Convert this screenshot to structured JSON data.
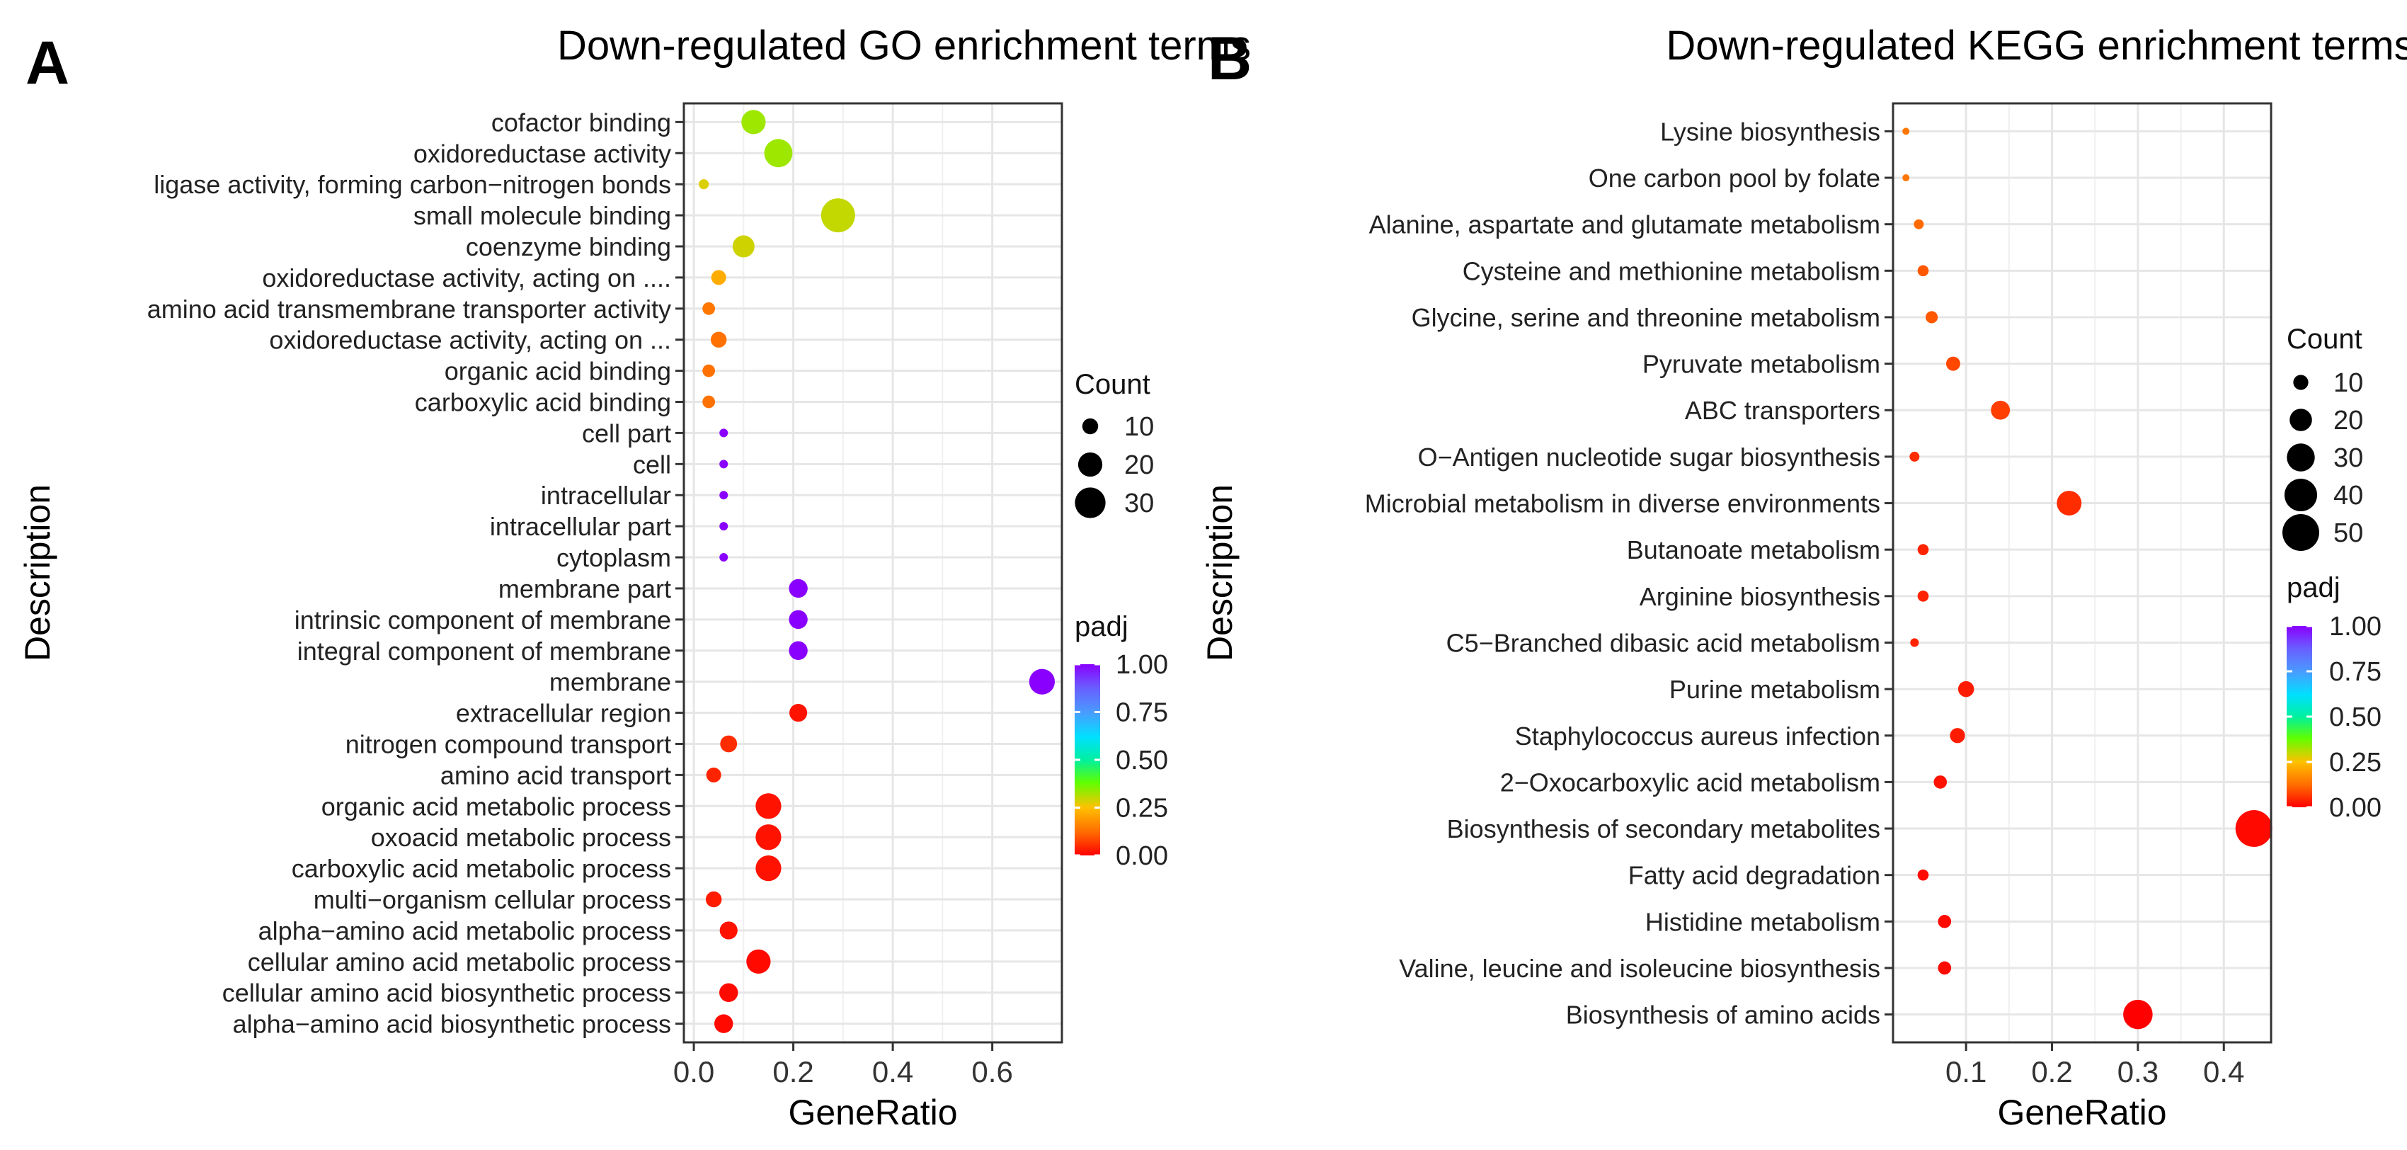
{
  "chart_data": [
    {
      "panel": "A",
      "type": "scatter",
      "title": "Down-regulated GO enrichment terms",
      "xlabel": "GeneRatio",
      "ylabel": "Description",
      "xlim": [
        -0.02,
        0.74
      ],
      "xticks": [
        0.0,
        0.2,
        0.4,
        0.6
      ],
      "xtick_labels": [
        "0.0",
        "0.2",
        "0.4",
        "0.6"
      ],
      "grid": true,
      "size_legend": {
        "title": "Count",
        "values": [
          10,
          20,
          30
        ],
        "labels": [
          "10",
          "20",
          "30"
        ]
      },
      "color_legend": {
        "title": "padj",
        "ticks": [
          1.0,
          0.75,
          0.5,
          0.25,
          0.0
        ],
        "labels": [
          "1.00",
          "0.75",
          "0.50",
          "0.25",
          "0.00"
        ]
      },
      "points": [
        {
          "label": "cofactor binding",
          "x": 0.12,
          "count": 20,
          "padj": 0.33
        },
        {
          "label": "oxidoreductase activity",
          "x": 0.17,
          "count": 26,
          "padj": 0.33
        },
        {
          "label": "ligase activity, forming carbon−nitrogen bonds",
          "x": 0.02,
          "count": 5,
          "padj": 0.28
        },
        {
          "label": "small molecule binding",
          "x": 0.29,
          "count": 36,
          "padj": 0.3
        },
        {
          "label": "coenzyme binding",
          "x": 0.1,
          "count": 17,
          "padj": 0.29
        },
        {
          "label": "oxidoreductase activity, acting on ....",
          "x": 0.05,
          "count": 9,
          "padj": 0.22
        },
        {
          "label": "amino acid transmembrane transporter activity",
          "x": 0.03,
          "count": 7,
          "padj": 0.14
        },
        {
          "label": "oxidoreductase activity, acting on ...",
          "x": 0.05,
          "count": 10,
          "padj": 0.13
        },
        {
          "label": "organic acid binding",
          "x": 0.03,
          "count": 7,
          "padj": 0.13
        },
        {
          "label": "carboxylic acid binding",
          "x": 0.03,
          "count": 7,
          "padj": 0.13
        },
        {
          "label": "cell part",
          "x": 0.06,
          "count": 4,
          "padj": 1.0
        },
        {
          "label": "cell",
          "x": 0.06,
          "count": 4,
          "padj": 1.0
        },
        {
          "label": "intracellular",
          "x": 0.06,
          "count": 4,
          "padj": 1.0
        },
        {
          "label": "intracellular part",
          "x": 0.06,
          "count": 4,
          "padj": 1.0
        },
        {
          "label": "cytoplasm",
          "x": 0.06,
          "count": 4,
          "padj": 1.0
        },
        {
          "label": "membrane part",
          "x": 0.21,
          "count": 13,
          "padj": 1.0
        },
        {
          "label": "intrinsic component of membrane",
          "x": 0.21,
          "count": 13,
          "padj": 1.0
        },
        {
          "label": "integral component of membrane",
          "x": 0.21,
          "count": 13,
          "padj": 1.0
        },
        {
          "label": "membrane",
          "x": 0.7,
          "count": 22,
          "padj": 1.0
        },
        {
          "label": "extracellular region",
          "x": 0.21,
          "count": 12,
          "padj": 0.02
        },
        {
          "label": "nitrogen compound transport",
          "x": 0.07,
          "count": 11,
          "padj": 0.05
        },
        {
          "label": "amino acid transport",
          "x": 0.04,
          "count": 9,
          "padj": 0.04
        },
        {
          "label": "organic acid metabolic process",
          "x": 0.15,
          "count": 22,
          "padj": 0.02
        },
        {
          "label": "oxoacid metabolic process",
          "x": 0.15,
          "count": 22,
          "padj": 0.02
        },
        {
          "label": "carboxylic acid metabolic process",
          "x": 0.15,
          "count": 22,
          "padj": 0.02
        },
        {
          "label": "multi−organism cellular process",
          "x": 0.04,
          "count": 10,
          "padj": 0.03
        },
        {
          "label": "alpha−amino acid metabolic process",
          "x": 0.07,
          "count": 12,
          "padj": 0.02
        },
        {
          "label": "cellular amino acid metabolic process",
          "x": 0.13,
          "count": 20,
          "padj": 0.01
        },
        {
          "label": "cellular amino acid biosynthetic process",
          "x": 0.07,
          "count": 13,
          "padj": 0.01
        },
        {
          "label": "alpha−amino acid biosynthetic process",
          "x": 0.06,
          "count": 13,
          "padj": 0.01
        }
      ]
    },
    {
      "panel": "B",
      "type": "scatter",
      "title": "Down-regulated KEGG enrichment terms",
      "xlabel": "GeneRatio",
      "ylabel": "Description",
      "xlim": [
        0.015,
        0.455
      ],
      "xticks": [
        0.1,
        0.2,
        0.3,
        0.4
      ],
      "xtick_labels": [
        "0.1",
        "0.2",
        "0.3",
        "0.4"
      ],
      "grid": true,
      "size_legend": {
        "title": "Count",
        "values": [
          10,
          20,
          30,
          40,
          50
        ],
        "labels": [
          "10",
          "20",
          "30",
          "40",
          "50"
        ]
      },
      "color_legend": {
        "title": "padj",
        "ticks": [
          1.0,
          0.75,
          0.5,
          0.25,
          0.0
        ],
        "labels": [
          "1.00",
          "0.75",
          "0.50",
          "0.25",
          "0.00"
        ]
      },
      "points": [
        {
          "label": "Lysine biosynthesis",
          "x": 0.03,
          "count": 3,
          "padj": 0.14
        },
        {
          "label": "One carbon pool by folate",
          "x": 0.03,
          "count": 3,
          "padj": 0.14
        },
        {
          "label": "Alanine, aspartate and glutamate metabolism",
          "x": 0.045,
          "count": 5,
          "padj": 0.12
        },
        {
          "label": "Cysteine and methionine metabolism",
          "x": 0.05,
          "count": 6,
          "padj": 0.1
        },
        {
          "label": "Glycine, serine and threonine metabolism",
          "x": 0.06,
          "count": 7,
          "padj": 0.1
        },
        {
          "label": "Pyruvate metabolism",
          "x": 0.085,
          "count": 9,
          "padj": 0.08
        },
        {
          "label": "ABC transporters",
          "x": 0.14,
          "count": 15,
          "padj": 0.07
        },
        {
          "label": "O−Antigen nucleotide sugar biosynthesis",
          "x": 0.04,
          "count": 5,
          "padj": 0.05
        },
        {
          "label": "Microbial metabolism in diverse environments",
          "x": 0.22,
          "count": 24,
          "padj": 0.05
        },
        {
          "label": "Butanoate metabolism",
          "x": 0.05,
          "count": 6,
          "padj": 0.04
        },
        {
          "label": "Arginine biosynthesis",
          "x": 0.05,
          "count": 6,
          "padj": 0.04
        },
        {
          "label": "C5−Branched dibasic acid metabolism",
          "x": 0.04,
          "count": 4,
          "padj": 0.04
        },
        {
          "label": "Purine metabolism",
          "x": 0.1,
          "count": 11,
          "padj": 0.03
        },
        {
          "label": "Staphylococcus aureus infection",
          "x": 0.09,
          "count": 10,
          "padj": 0.03
        },
        {
          "label": "2−Oxocarboxylic acid metabolism",
          "x": 0.07,
          "count": 8,
          "padj": 0.02
        },
        {
          "label": "Biosynthesis of secondary metabolites",
          "x": 0.435,
          "count": 50,
          "padj": 0.01
        },
        {
          "label": "Fatty acid degradation",
          "x": 0.05,
          "count": 6,
          "padj": 0.01
        },
        {
          "label": "Histidine metabolism",
          "x": 0.075,
          "count": 8,
          "padj": 0.01
        },
        {
          "label": "Valine, leucine and isoleucine biosynthesis",
          "x": 0.075,
          "count": 8,
          "padj": 0.01
        },
        {
          "label": "Biosynthesis of amino acids",
          "x": 0.3,
          "count": 33,
          "padj": 0.0
        }
      ]
    }
  ]
}
